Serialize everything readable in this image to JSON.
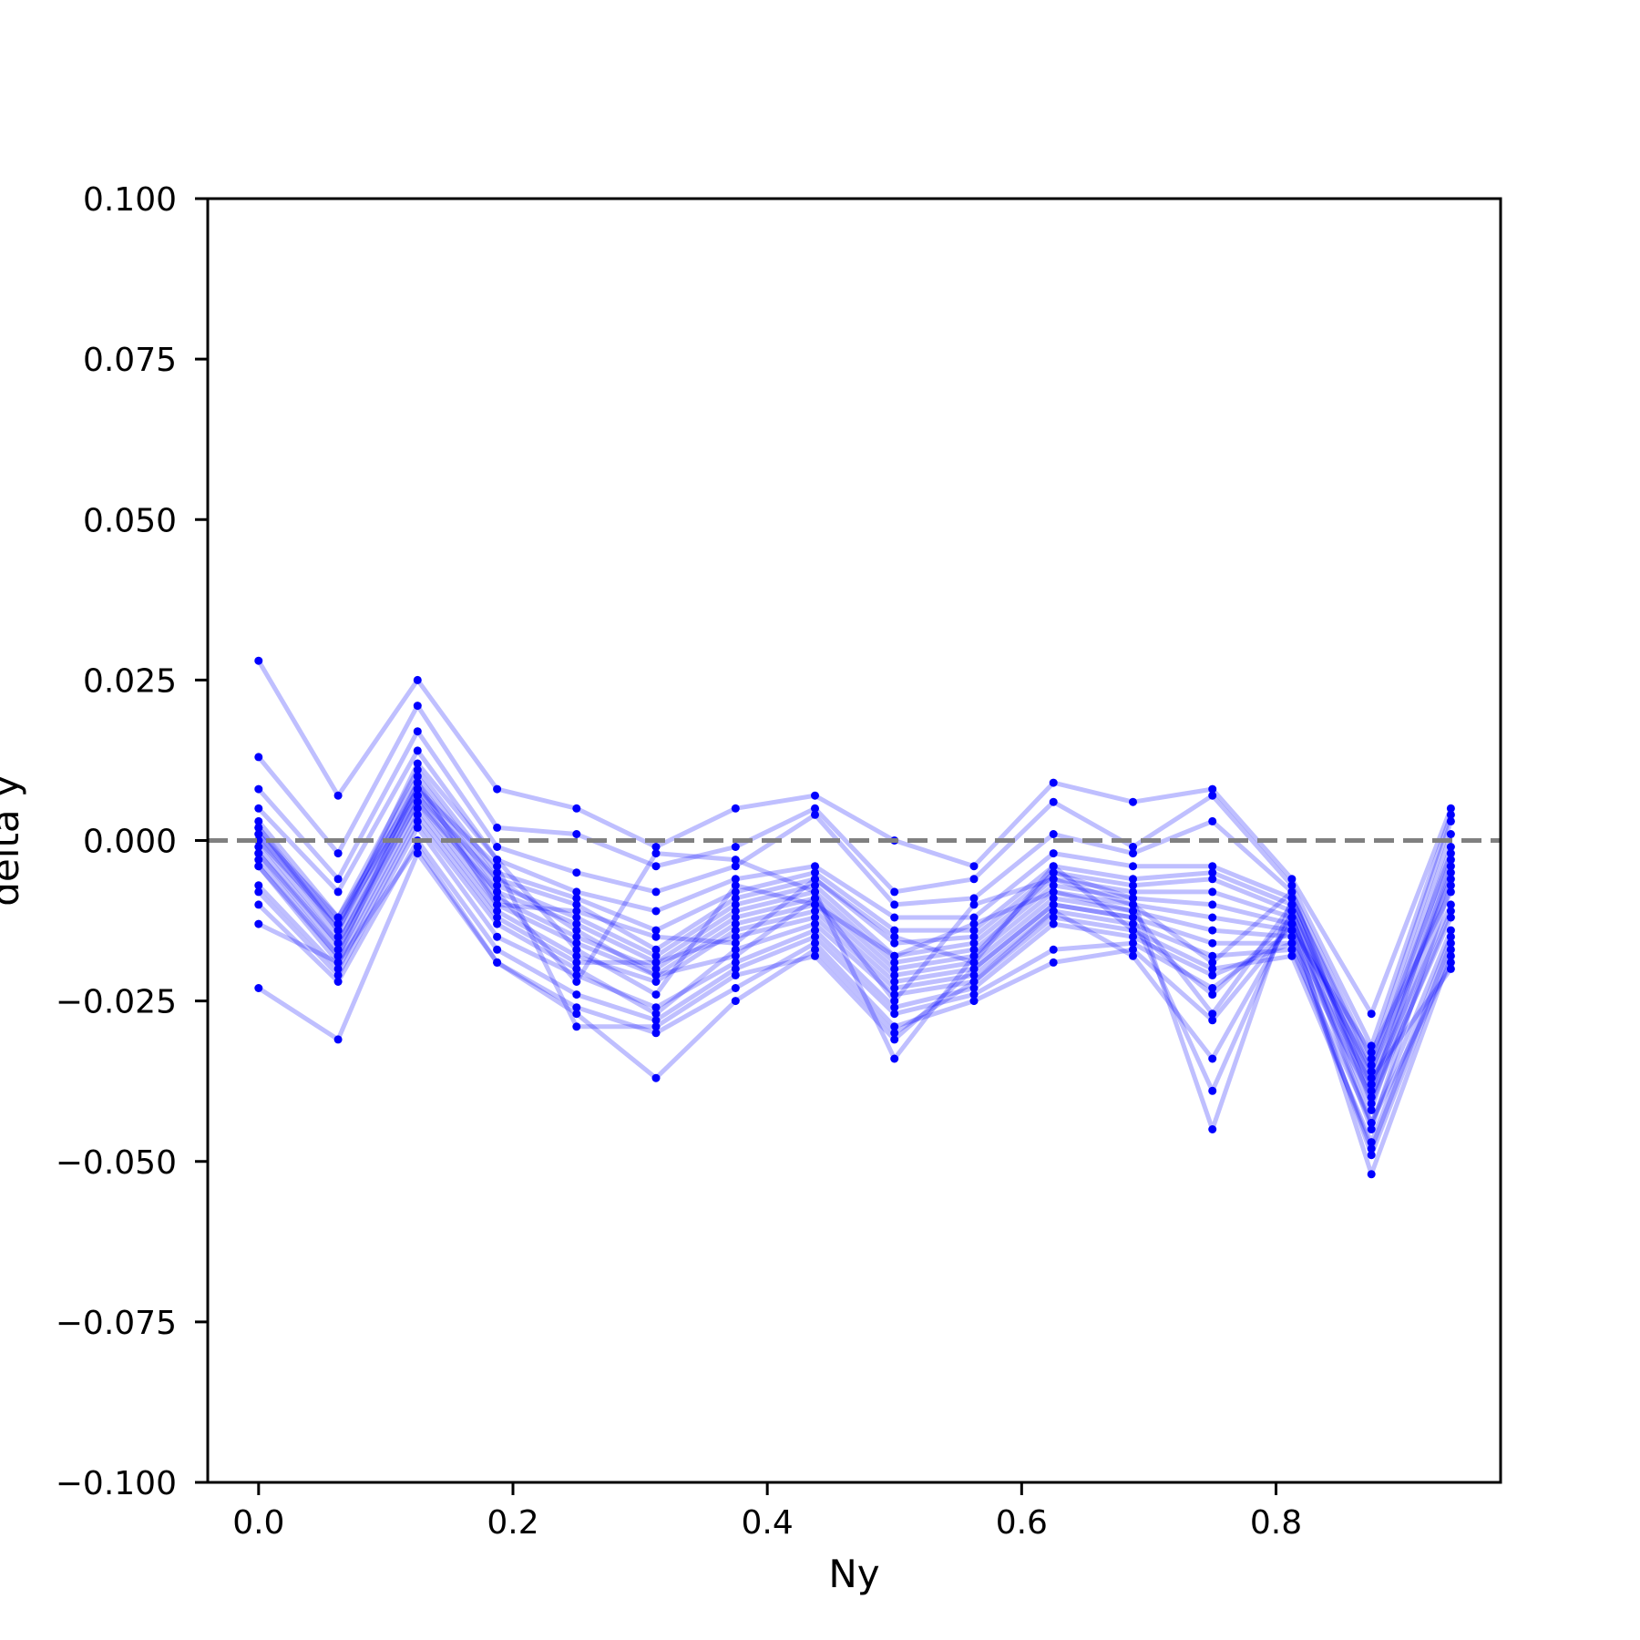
{
  "chart_data": {
    "type": "line",
    "xlabel": "Ny",
    "ylabel": "delta y",
    "xlim": [
      -0.04,
      0.9766
    ],
    "ylim": [
      -0.1,
      0.1
    ],
    "xticks": [
      0.0,
      0.2,
      0.4,
      0.6,
      0.8
    ],
    "xtick_labels": [
      "0.0",
      "0.2",
      "0.4",
      "0.6",
      "0.8"
    ],
    "yticks": [
      -0.1,
      -0.075,
      -0.05,
      -0.025,
      0.0,
      0.025,
      0.05,
      0.075,
      0.1
    ],
    "ytick_labels": [
      "−0.100",
      "−0.075",
      "−0.050",
      "−0.025",
      "0.000",
      "0.025",
      "0.050",
      "0.075",
      "0.100"
    ],
    "reference_line": {
      "y": 0.0,
      "style": "dashed",
      "color": "#808080"
    },
    "grid": false,
    "legend": "none",
    "series_color": "#0000ff",
    "line_opacity": 0.25,
    "x": [
      0.0,
      0.0625,
      0.125,
      0.1875,
      0.25,
      0.3125,
      0.375,
      0.4375,
      0.5,
      0.5625,
      0.625,
      0.6875,
      0.75,
      0.8125,
      0.875,
      0.9375
    ],
    "series": [
      {
        "values": [
          0.028,
          0.007,
          0.025,
          0.008,
          0.005,
          -0.001,
          0.005,
          0.007,
          0.0,
          -0.004,
          0.009,
          0.006,
          0.008,
          -0.006,
          -0.027,
          0.005
        ]
      },
      {
        "values": [
          0.013,
          -0.002,
          0.021,
          0.002,
          0.001,
          -0.004,
          -0.001,
          0.005,
          -0.008,
          -0.006,
          0.006,
          -0.001,
          0.007,
          -0.007,
          -0.032,
          0.004
        ]
      },
      {
        "values": [
          0.008,
          -0.006,
          0.017,
          -0.001,
          -0.005,
          -0.008,
          -0.004,
          0.004,
          -0.01,
          -0.009,
          0.001,
          -0.002,
          0.003,
          -0.008,
          -0.034,
          0.003
        ]
      },
      {
        "values": [
          0.005,
          -0.008,
          0.014,
          -0.003,
          -0.008,
          -0.011,
          -0.006,
          -0.004,
          -0.012,
          -0.012,
          -0.002,
          -0.004,
          -0.004,
          -0.009,
          -0.036,
          0.001
        ]
      },
      {
        "values": [
          0.003,
          -0.012,
          0.011,
          -0.005,
          -0.009,
          -0.014,
          -0.008,
          -0.005,
          -0.014,
          -0.014,
          -0.004,
          -0.006,
          -0.005,
          -0.01,
          -0.038,
          -0.001
        ]
      },
      {
        "values": [
          0.002,
          -0.013,
          0.01,
          -0.006,
          -0.01,
          -0.017,
          -0.009,
          -0.006,
          -0.016,
          -0.015,
          -0.005,
          -0.007,
          -0.006,
          -0.011,
          -0.04,
          -0.003
        ]
      },
      {
        "values": [
          0.001,
          -0.014,
          0.009,
          -0.007,
          -0.012,
          -0.018,
          -0.01,
          -0.007,
          -0.018,
          -0.016,
          -0.006,
          -0.008,
          -0.008,
          -0.012,
          -0.042,
          -0.005
        ]
      },
      {
        "values": [
          0.0,
          -0.015,
          0.008,
          -0.008,
          -0.013,
          -0.019,
          -0.011,
          -0.008,
          -0.019,
          -0.017,
          -0.007,
          -0.009,
          -0.01,
          -0.013,
          -0.036,
          -0.006
        ]
      },
      {
        "values": [
          -0.001,
          -0.016,
          0.007,
          -0.009,
          -0.015,
          -0.02,
          -0.012,
          -0.009,
          -0.02,
          -0.018,
          -0.008,
          -0.01,
          -0.012,
          -0.014,
          -0.033,
          -0.008
        ]
      },
      {
        "values": [
          -0.002,
          -0.017,
          0.006,
          -0.01,
          -0.016,
          -0.021,
          -0.013,
          -0.01,
          -0.021,
          -0.019,
          -0.009,
          -0.011,
          -0.014,
          -0.015,
          -0.038,
          -0.01
        ]
      },
      {
        "values": [
          -0.003,
          -0.018,
          0.005,
          -0.011,
          -0.018,
          -0.022,
          -0.014,
          -0.011,
          -0.022,
          -0.02,
          -0.01,
          -0.012,
          -0.016,
          -0.016,
          -0.04,
          -0.012
        ]
      },
      {
        "values": [
          -0.004,
          -0.019,
          0.004,
          -0.012,
          -0.019,
          -0.019,
          -0.015,
          -0.012,
          -0.023,
          -0.021,
          -0.011,
          -0.013,
          -0.018,
          -0.017,
          -0.044,
          -0.014
        ]
      },
      {
        "values": [
          -0.007,
          -0.02,
          0.003,
          -0.013,
          -0.02,
          -0.027,
          -0.017,
          -0.013,
          -0.024,
          -0.022,
          -0.012,
          -0.014,
          -0.02,
          -0.018,
          -0.047,
          -0.015
        ]
      },
      {
        "values": [
          -0.008,
          -0.021,
          0.002,
          -0.015,
          -0.021,
          -0.026,
          -0.019,
          -0.014,
          -0.026,
          -0.023,
          -0.013,
          -0.015,
          -0.021,
          -0.016,
          -0.048,
          -0.016
        ]
      },
      {
        "values": [
          -0.01,
          -0.022,
          0.0,
          -0.017,
          -0.024,
          -0.028,
          -0.02,
          -0.015,
          -0.027,
          -0.024,
          -0.017,
          -0.016,
          -0.023,
          -0.014,
          -0.049,
          -0.017
        ]
      },
      {
        "values": [
          -0.013,
          -0.019,
          -0.001,
          -0.019,
          -0.026,
          -0.03,
          -0.023,
          -0.016,
          -0.029,
          -0.025,
          -0.019,
          -0.017,
          -0.028,
          -0.013,
          -0.052,
          -0.018
        ]
      },
      {
        "values": [
          -0.023,
          -0.031,
          -0.002,
          -0.019,
          -0.027,
          -0.037,
          -0.025,
          -0.017,
          -0.03,
          -0.022,
          -0.011,
          -0.018,
          -0.034,
          -0.012,
          -0.044,
          -0.019
        ]
      },
      {
        "values": [
          0.001,
          -0.012,
          0.008,
          -0.004,
          -0.029,
          -0.029,
          -0.021,
          -0.018,
          -0.031,
          -0.02,
          -0.01,
          -0.012,
          -0.039,
          -0.011,
          -0.037,
          -0.02
        ]
      },
      {
        "values": [
          -0.002,
          -0.016,
          0.006,
          -0.008,
          -0.022,
          -0.002,
          -0.003,
          -0.008,
          -0.034,
          -0.018,
          -0.005,
          -0.009,
          -0.045,
          -0.009,
          -0.035,
          -0.002
        ]
      },
      {
        "values": [
          0.002,
          -0.014,
          0.012,
          -0.003,
          -0.017,
          -0.024,
          -0.007,
          -0.01,
          -0.018,
          -0.013,
          -0.008,
          -0.011,
          -0.027,
          -0.01,
          -0.039,
          -0.004
        ]
      },
      {
        "values": [
          -0.004,
          -0.018,
          0.009,
          -0.01,
          -0.011,
          -0.015,
          -0.016,
          -0.006,
          -0.015,
          -0.019,
          -0.004,
          -0.014,
          -0.024,
          -0.012,
          -0.045,
          -0.007
        ]
      },
      {
        "values": [
          0.0,
          -0.013,
          0.007,
          -0.006,
          -0.014,
          -0.021,
          -0.018,
          -0.009,
          -0.025,
          -0.01,
          -0.006,
          -0.01,
          -0.019,
          -0.008,
          -0.041,
          -0.011
        ]
      }
    ]
  }
}
